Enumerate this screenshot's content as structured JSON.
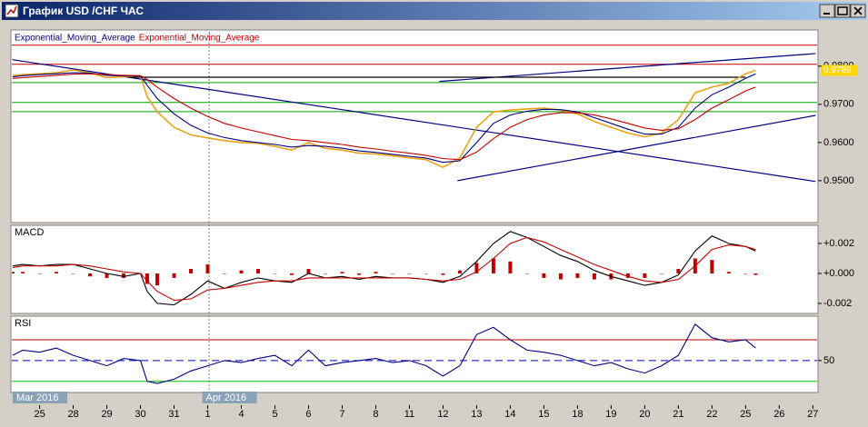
{
  "window": {
    "title": "График USD /CHF ЧАС"
  },
  "chart_data": [
    {
      "type": "line",
      "xlim": [
        -0.8,
        23.1
      ],
      "x": [
        -0.8,
        -0.5,
        0,
        0.5,
        1,
        1.5,
        2,
        2.5,
        3,
        3.2,
        3.5,
        4,
        4.5,
        5,
        5.5,
        6,
        6.5,
        7,
        7.5,
        8,
        8.5,
        9,
        9.5,
        10,
        10.5,
        11,
        11.5,
        12,
        12.5,
        13,
        13.5,
        14,
        14.5,
        15,
        15.5,
        16,
        16.5,
        17,
        17.5,
        18,
        18.5,
        19,
        19.5,
        20,
        20.5,
        21,
        21.3
      ],
      "ylim": [
        0.9395,
        0.989
      ],
      "yticks": [
        {
          "value": 0.98,
          "label": "0.9800"
        },
        {
          "value": 0.97,
          "label": "0.9700"
        },
        {
          "value": 0.96,
          "label": "0.9600"
        },
        {
          "value": 0.95,
          "label": "0.9500"
        }
      ],
      "series": [
        {
          "color": "#e8a317",
          "values": [
            0.9775,
            0.9778,
            0.978,
            0.9783,
            0.979,
            0.9782,
            0.977,
            0.9772,
            0.9775,
            0.972,
            0.968,
            0.964,
            0.962,
            0.9612,
            0.9605,
            0.96,
            0.9598,
            0.959,
            0.958,
            0.96,
            0.9585,
            0.958,
            0.9572,
            0.957,
            0.9565,
            0.956,
            0.9555,
            0.9535,
            0.956,
            0.964,
            0.968,
            0.9685,
            0.9688,
            0.969,
            0.9685,
            0.9675,
            0.9655,
            0.964,
            0.9625,
            0.9615,
            0.9625,
            0.966,
            0.973,
            0.9745,
            0.9755,
            0.978,
            0.9789
          ]
        },
        {
          "name": "Exponential_Moving_Average",
          "color": "#000080",
          "values": [
            0.9772,
            0.9775,
            0.9778,
            0.978,
            0.9783,
            0.9782,
            0.9776,
            0.9774,
            0.9774,
            0.975,
            0.9715,
            0.9675,
            0.9645,
            0.9625,
            0.9613,
            0.9605,
            0.96,
            0.9595,
            0.9588,
            0.9592,
            0.959,
            0.9585,
            0.9578,
            0.9574,
            0.9569,
            0.9564,
            0.9559,
            0.9548,
            0.9552,
            0.96,
            0.965,
            0.9672,
            0.9682,
            0.9687,
            0.9686,
            0.968,
            0.9665,
            0.965,
            0.9635,
            0.9622,
            0.9622,
            0.964,
            0.969,
            0.9725,
            0.9745,
            0.9768,
            0.978
          ]
        },
        {
          "name": "Exponential_Moving_Average",
          "color": "#c00000",
          "values": [
            0.9768,
            0.977,
            0.9773,
            0.9776,
            0.9779,
            0.978,
            0.9778,
            0.9776,
            0.9775,
            0.9765,
            0.9745,
            0.9715,
            0.969,
            0.9668,
            0.965,
            0.9638,
            0.9628,
            0.9618,
            0.9608,
            0.9605,
            0.96,
            0.9595,
            0.9588,
            0.9583,
            0.9577,
            0.9572,
            0.9566,
            0.9558,
            0.9555,
            0.9575,
            0.961,
            0.964,
            0.966,
            0.9672,
            0.9678,
            0.9678,
            0.9672,
            0.9662,
            0.965,
            0.9638,
            0.9632,
            0.9636,
            0.966,
            0.969,
            0.9712,
            0.9735,
            0.9745
          ]
        }
      ],
      "levels": [
        {
          "value": 0.9855,
          "color": "#c00000"
        },
        {
          "value": 0.9805,
          "color": "#c00000"
        },
        {
          "value": 0.9757,
          "color": "#00a000"
        },
        {
          "value": 0.9705,
          "color": "#00a000"
        },
        {
          "value": 0.9681,
          "color": "#00a000"
        }
      ],
      "trendlines": [
        {
          "color": "#000080",
          "x": [
            -0.81,
            23.08
          ],
          "values": [
            0.9817,
            0.9498
          ]
        },
        {
          "color": "#000080",
          "x": [
            11.89,
            23.08
          ],
          "values": [
            0.976,
            0.9833
          ]
        },
        {
          "color": "#000080",
          "x": [
            12.43,
            23.08
          ],
          "values": [
            0.95,
            0.9671
          ]
        },
        {
          "color": "#000000",
          "x": [
            2.6,
            21
          ],
          "values": [
            0.9771,
            0.9771
          ]
        }
      ],
      "last_price": {
        "value": 0.9789,
        "label": "0.9789",
        "color": "#ffd700"
      }
    },
    {
      "type": "line",
      "title": "MACD",
      "xlim": [
        -0.8,
        23.1
      ],
      "x": [
        -0.8,
        -0.5,
        0,
        0.5,
        1,
        1.5,
        2,
        2.5,
        3,
        3.2,
        3.5,
        4,
        4.5,
        5,
        5.5,
        6,
        6.5,
        7,
        7.5,
        8,
        8.5,
        9,
        9.5,
        10,
        10.5,
        11,
        11.5,
        12,
        12.5,
        13,
        13.5,
        14,
        14.5,
        15,
        15.5,
        16,
        16.5,
        17,
        17.5,
        18,
        18.5,
        19,
        19.5,
        20,
        20.5,
        21,
        21.3
      ],
      "ylim": [
        -0.00255,
        0.00309
      ],
      "yticks": [
        {
          "value": 0.002,
          "label": "+0.002"
        },
        {
          "value": 0,
          "label": "+0.000"
        },
        {
          "value": -0.002,
          "label": "-0.002"
        }
      ],
      "series": [
        {
          "kind": "bar",
          "color": "#c00000",
          "values": [
            0.0001,
            0.0001,
            0,
            0.0001,
            0,
            -0.0002,
            -0.0003,
            -0.0003,
            0,
            -0.0007,
            -0.0008,
            -0.0003,
            0.0003,
            0.0006,
            0,
            0.0002,
            0.0003,
            0,
            -0.0001,
            0.0003,
            0,
            0.0001,
            -0.0001,
            0.0001,
            0,
            0,
            0,
            -0.0001,
            0.0002,
            0.0007,
            0.001,
            0.0008,
            0,
            -0.0003,
            -0.0004,
            -0.0003,
            -0.0004,
            -0.0004,
            -0.0003,
            -0.0003,
            0,
            0.0003,
            0.001,
            0.0009,
            0.0001,
            0,
            -0.0001
          ]
        },
        {
          "color": "#000000",
          "values": [
            0.0005,
            0.0006,
            0.0005,
            0.0006,
            0.0006,
            0.0003,
            0,
            -0.0002,
            0,
            -0.0012,
            -0.002,
            -0.0021,
            -0.0014,
            -0.0005,
            -0.001,
            -0.0006,
            -0.0003,
            -0.0005,
            -0.0006,
            0,
            -0.0003,
            -0.0002,
            -0.0004,
            -0.0002,
            -0.0003,
            -0.0003,
            -0.0004,
            -0.0006,
            -0.0002,
            0.0008,
            0.002,
            0.0028,
            0.0024,
            0.0018,
            0.0012,
            0.0008,
            0.0002,
            -0.0002,
            -0.0005,
            -0.0008,
            -0.0006,
            -0.0001,
            0.0015,
            0.0025,
            0.002,
            0.0018,
            0.0015
          ]
        },
        {
          "color": "#c00000",
          "values": [
            0.0004,
            0.0005,
            0.0005,
            0.0005,
            0.0006,
            0.0005,
            0.0003,
            0.0001,
            0,
            -0.0005,
            -0.0012,
            -0.0018,
            -0.0017,
            -0.0011,
            -0.001,
            -0.0008,
            -0.0006,
            -0.0005,
            -0.0005,
            -0.0003,
            -0.0003,
            -0.0003,
            -0.0003,
            -0.0003,
            -0.0003,
            -0.0003,
            -0.0004,
            -0.0005,
            -0.0004,
            0.0001,
            0.001,
            0.002,
            0.0024,
            0.0021,
            0.0016,
            0.0011,
            0.0006,
            0.0002,
            -0.0002,
            -0.0005,
            -0.0006,
            -0.0004,
            0.0005,
            0.0016,
            0.0019,
            0.0018,
            0.0016
          ]
        }
      ]
    },
    {
      "type": "line",
      "title": "RSI",
      "xlim": [
        -0.8,
        23.1
      ],
      "x": [
        -0.8,
        -0.5,
        0,
        0.5,
        1,
        1.5,
        2,
        2.5,
        3,
        3.2,
        3.5,
        4,
        4.5,
        5,
        5.5,
        6,
        6.5,
        7,
        7.5,
        8,
        8.5,
        9,
        9.5,
        10,
        10.5,
        11,
        11.5,
        12,
        12.5,
        13,
        13.5,
        14,
        14.5,
        15,
        15.5,
        16,
        16.5,
        17,
        17.5,
        18,
        18.5,
        19,
        19.5,
        20,
        20.5,
        21,
        21.3
      ],
      "ylim": [
        21,
        91
      ],
      "yticks": [
        50
      ],
      "series": [
        {
          "color": "#000080",
          "values": [
            55,
            60,
            58,
            62,
            55,
            50,
            45,
            52,
            50,
            30,
            28,
            32,
            40,
            45,
            50,
            48,
            52,
            55,
            45,
            60,
            45,
            48,
            50,
            52,
            48,
            50,
            45,
            35,
            45,
            75,
            82,
            70,
            60,
            58,
            55,
            50,
            45,
            48,
            42,
            38,
            45,
            55,
            85,
            72,
            68,
            70,
            62
          ]
        }
      ],
      "levels": [
        {
          "value": 70,
          "color": "#c00000"
        },
        {
          "value": 50,
          "color": "#0000c0",
          "dashed": true
        },
        {
          "value": 30,
          "color": "#00c000"
        }
      ],
      "xticks": [
        {
          "value": 0,
          "label": "25"
        },
        {
          "value": 1,
          "label": "28"
        },
        {
          "value": 2,
          "label": "29"
        },
        {
          "value": 3,
          "label": "30"
        },
        {
          "value": 4,
          "label": "31"
        },
        {
          "value": 5,
          "label": "1"
        },
        {
          "value": 6,
          "label": "4"
        },
        {
          "value": 7,
          "label": "5"
        },
        {
          "value": 8,
          "label": "6"
        },
        {
          "value": 9,
          "label": "7"
        },
        {
          "value": 10,
          "label": "8"
        },
        {
          "value": 11,
          "label": "11"
        },
        {
          "value": 12,
          "label": "12"
        },
        {
          "value": 13,
          "label": "13"
        },
        {
          "value": 14,
          "label": "14"
        },
        {
          "value": 15,
          "label": "15"
        },
        {
          "value": 16,
          "label": "18"
        },
        {
          "value": 17,
          "label": "19"
        },
        {
          "value": 18,
          "label": "20"
        },
        {
          "value": 19,
          "label": "21"
        },
        {
          "value": 20,
          "label": "22"
        },
        {
          "value": 21,
          "label": "25"
        },
        {
          "value": 22,
          "label": "26"
        },
        {
          "value": 23,
          "label": "27"
        }
      ],
      "period_labels": [
        {
          "value": -0.8,
          "label": "Mar 2016"
        },
        {
          "value": 5,
          "label": "Apr 2016"
        }
      ]
    }
  ]
}
